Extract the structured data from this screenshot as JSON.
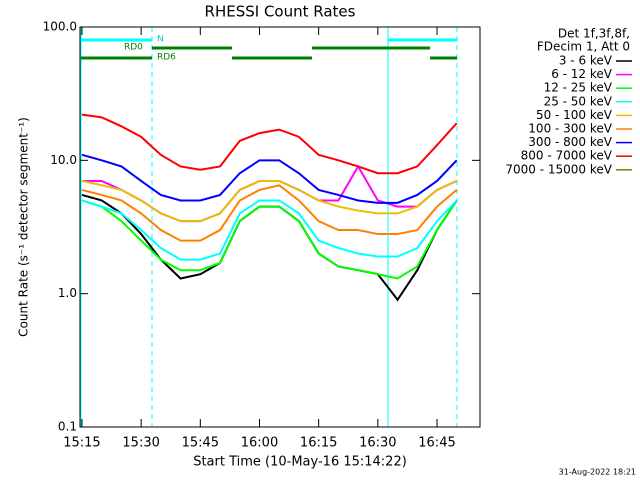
{
  "chart_data": {
    "type": "line",
    "title": "RHESSI Count Rates",
    "x_label": "Start Time (10-May-16 15:14:22)",
    "y_label": "Count Rate (s⁻¹ detector segment⁻¹)",
    "legend_title": [
      "Det 1f,3f,8f,",
      "FDecim 1, Att 0"
    ],
    "annotations": [
      "N",
      "RD0",
      "RD6"
    ],
    "footer": "31-Aug-2022 18:21",
    "log_y": true,
    "xlim": [
      14.5,
      115.9
    ],
    "xticks": [
      {
        "value": 15,
        "label": "15:15"
      },
      {
        "value": 30,
        "label": "15:30"
      },
      {
        "value": 45,
        "label": "15:45"
      },
      {
        "value": 60,
        "label": "16:00"
      },
      {
        "value": 75,
        "label": "16:15"
      },
      {
        "value": 90,
        "label": "16:30"
      },
      {
        "value": 105,
        "label": "16:45"
      }
    ],
    "ylim": [
      0.1,
      100
    ],
    "yticks": [
      0.1,
      {
        "value": 1,
        "label": "1.0"
      },
      {
        "value": 10,
        "label": "10.0"
      },
      {
        "value": 100,
        "label": "100.0"
      }
    ],
    "x": [
      15,
      20,
      25,
      30,
      35,
      40,
      45,
      50,
      55,
      60,
      65,
      70,
      75,
      80,
      85,
      90,
      95,
      100,
      105,
      110
    ],
    "series": [
      {
        "name": "3 - 6 keV",
        "color": "#000000",
        "values": [
          5.5,
          5,
          4,
          2.8,
          1.8,
          1.3,
          1.4,
          1.7,
          3.5,
          4.5,
          4.5,
          3.5,
          2,
          1.6,
          1.5,
          1.4,
          0.9,
          1.5,
          3,
          5
        ]
      },
      {
        "name": "6 - 12 keV",
        "color": "#ff00ff",
        "values": [
          7,
          7,
          6,
          5,
          4,
          3.5,
          3.5,
          4,
          6,
          7,
          7,
          6,
          5,
          5,
          9,
          5,
          4.5,
          4.5,
          6,
          7
        ]
      },
      {
        "name": "12 - 25 keV",
        "color": "#00ff00",
        "values": [
          5,
          4.5,
          3.5,
          2.5,
          1.8,
          1.5,
          1.5,
          1.7,
          3.5,
          4.5,
          4.5,
          3.5,
          2,
          1.6,
          1.5,
          1.4,
          1.3,
          1.6,
          3,
          5
        ]
      },
      {
        "name": "25 - 50 keV",
        "color": "#00ffff",
        "values": [
          5,
          4.5,
          4,
          3,
          2.2,
          1.8,
          1.8,
          2,
          4,
          5,
          5,
          4,
          2.5,
          2.2,
          2,
          1.9,
          1.9,
          2.2,
          3.5,
          5
        ]
      },
      {
        "name": "50 - 100 keV",
        "color": "#e8c000",
        "values": [
          7,
          6.5,
          6,
          5,
          4,
          3.5,
          3.5,
          4,
          6,
          7,
          7,
          6,
          5,
          4.5,
          4.2,
          4,
          4,
          4.5,
          6,
          7
        ]
      },
      {
        "name": "100 - 300 keV",
        "color": "#ff8000",
        "values": [
          6,
          5.5,
          5,
          4,
          3,
          2.5,
          2.5,
          3,
          5,
          6,
          6.5,
          5,
          3.5,
          3,
          3,
          2.8,
          2.8,
          3,
          4.5,
          6
        ]
      },
      {
        "name": "300 - 800 keV",
        "color": "#0000ff",
        "values": [
          11,
          10,
          9,
          7,
          5.5,
          5,
          5,
          5.5,
          8,
          10,
          10,
          8,
          6,
          5.5,
          5,
          4.8,
          4.8,
          5.5,
          7,
          10
        ]
      },
      {
        "name": "800 - 7000 keV",
        "color": "#ff0000",
        "values": [
          22,
          21,
          18,
          15,
          11,
          9,
          8.5,
          9,
          14,
          16,
          17,
          15,
          11,
          10,
          9,
          8,
          8,
          9,
          13,
          19
        ]
      },
      {
        "name": "7000 - 15000 keV",
        "color": "#808000",
        "values": [
          null,
          null,
          null,
          null,
          null,
          null,
          null,
          null,
          null,
          null,
          null,
          null,
          null,
          null,
          null,
          null,
          null,
          null,
          null,
          null
        ]
      }
    ]
  }
}
